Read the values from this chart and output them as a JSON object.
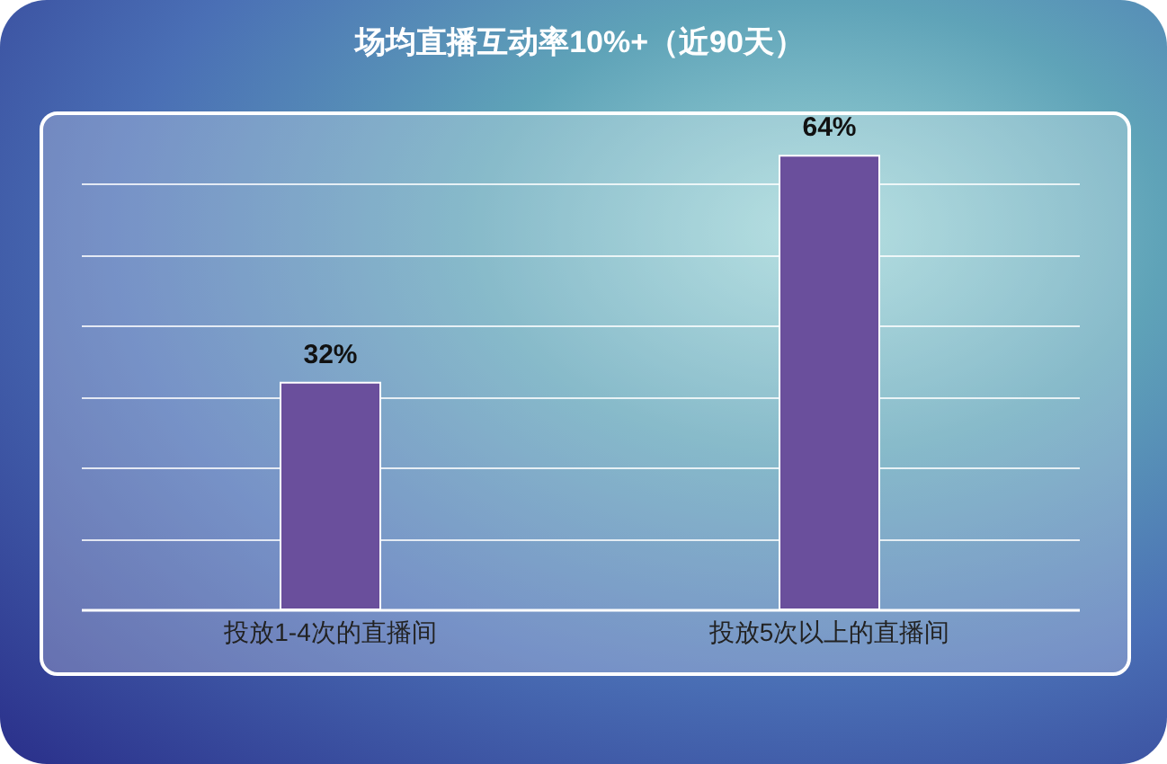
{
  "chart_data": {
    "type": "bar",
    "title": "场均直播互动率10%+（近90天）",
    "categories": [
      "投放1-4次的直播间",
      "投放5次以上的直播间"
    ],
    "values": [
      32,
      64
    ],
    "value_labels": [
      "32%",
      "64%"
    ],
    "color": "#6a4f9c",
    "ylim": [
      0,
      70
    ],
    "yticks": [
      {
        "value": 0,
        "label": null
      },
      {
        "value": 10,
        "label": null
      },
      {
        "value": 20,
        "label": null
      },
      {
        "value": 30,
        "label": null
      },
      {
        "value": 40,
        "label": null
      },
      {
        "value": 50,
        "label": null
      },
      {
        "value": 60,
        "label": null
      }
    ],
    "grid": "y"
  }
}
